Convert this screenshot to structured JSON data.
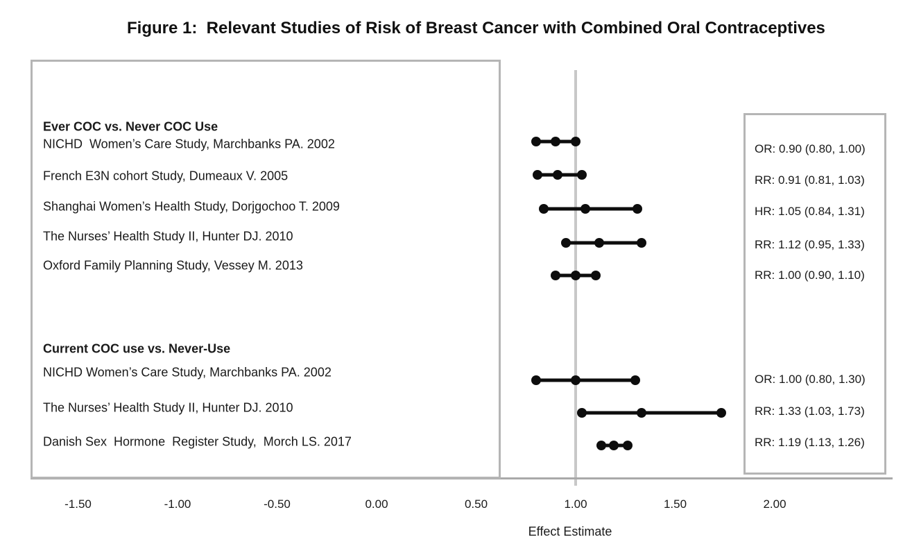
{
  "title": "Figure 1:  Relevant Studies of Risk of Breast Cancer with Combined Oral Contraceptives",
  "chart_data": {
    "type": "forest",
    "title": "Figure 1:  Relevant Studies of Risk of Breast Cancer with Combined Oral Contraceptives",
    "xlabel": "Effect Estimate",
    "x_ticks": [
      -1.5,
      -1.0,
      -0.5,
      0.0,
      0.5,
      1.0,
      1.5,
      2.0
    ],
    "x_tick_labels": [
      "-1.50",
      "-1.00",
      "-0.50",
      "0.00",
      "0.50",
      "1.00",
      "1.50",
      "2.00"
    ],
    "x_range": [
      -1.75,
      2.3
    ],
    "reference_line_x": 1.0,
    "grid": false,
    "marker_color": "#0d0d0d",
    "box_border_color": "#b5b5b5",
    "reference_line_color": "#c8c8c8",
    "groups": [
      {
        "header": "Ever COC vs. Never COC Use",
        "studies": [
          {
            "label": "NICHD  Women’s Care Study, Marchbanks PA. 2002",
            "measure": "OR",
            "estimate": 0.9,
            "ci_low": 0.8,
            "ci_high": 1.0,
            "estimate_label": "OR: 0.90 (0.80, 1.00)"
          },
          {
            "label": "French E3N cohort Study, Dumeaux V. 2005",
            "measure": "RR",
            "estimate": 0.91,
            "ci_low": 0.81,
            "ci_high": 1.03,
            "estimate_label": "RR: 0.91 (0.81, 1.03)"
          },
          {
            "label": "Shanghai Women’s Health Study, Dorjgochoo T. 2009",
            "measure": "HR",
            "estimate": 1.05,
            "ci_low": 0.84,
            "ci_high": 1.31,
            "estimate_label": "HR: 1.05 (0.84, 1.31)"
          },
          {
            "label": "The Nurses’ Health Study II, Hunter DJ. 2010",
            "measure": "RR",
            "estimate": 1.12,
            "ci_low": 0.95,
            "ci_high": 1.33,
            "estimate_label": "RR: 1.12 (0.95, 1.33)"
          },
          {
            "label": "Oxford Family Planning Study, Vessey M. 2013",
            "measure": "RR",
            "estimate": 1.0,
            "ci_low": 0.9,
            "ci_high": 1.1,
            "estimate_label": "RR: 1.00 (0.90, 1.10)"
          }
        ]
      },
      {
        "header": "Current COC use vs. Never-Use",
        "studies": [
          {
            "label": "NICHD Women’s Care Study, Marchbanks PA. 2002",
            "measure": "OR",
            "estimate": 1.0,
            "ci_low": 0.8,
            "ci_high": 1.3,
            "estimate_label": "OR: 1.00 (0.80, 1.30)"
          },
          {
            "label": "The Nurses’ Health Study II, Hunter DJ. 2010",
            "measure": "RR",
            "estimate": 1.33,
            "ci_low": 1.03,
            "ci_high": 1.73,
            "estimate_label": "RR: 1.33 (1.03, 1.73)"
          },
          {
            "label": "Danish Sex  Hormone  Register Study,  Morch LS. 2017",
            "measure": "RR",
            "estimate": 1.19,
            "ci_low": 1.13,
            "ci_high": 1.26,
            "estimate_label": "RR: 1.19 (1.13, 1.26)"
          }
        ]
      }
    ]
  }
}
